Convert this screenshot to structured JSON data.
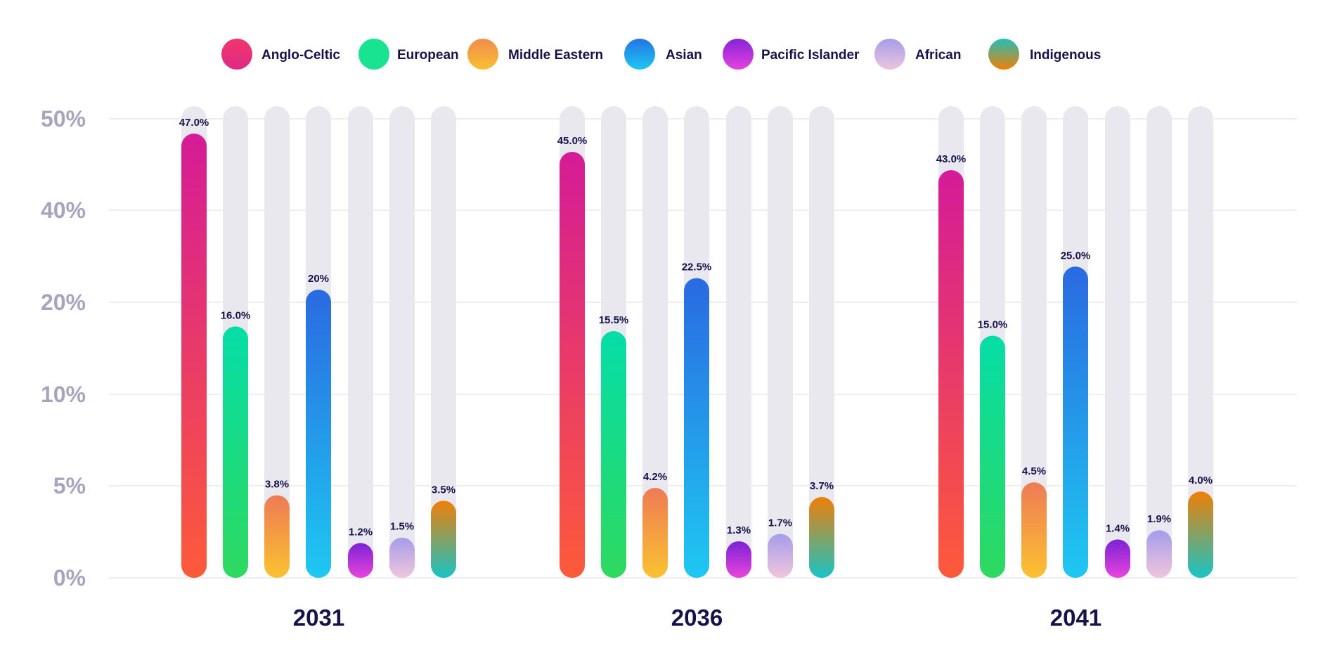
{
  "chart_data": {
    "type": "bar",
    "categories": [
      "2031",
      "2036",
      "2041"
    ],
    "y_ticks": [
      "0%",
      "5%",
      "10%",
      "20%",
      "40%",
      "50%"
    ],
    "y_tick_values": [
      0,
      5,
      10,
      20,
      40,
      50
    ],
    "ylim": [
      0,
      50
    ],
    "y_scale": "piecewise",
    "grid": true,
    "legend_position": "top",
    "series": [
      {
        "name": "Anglo-Celtic",
        "values": [
          47.0,
          45.0,
          43.0
        ],
        "labels": [
          "47.0%",
          "45.0%",
          "43.0%"
        ],
        "colors": [
          "#d51b97",
          "#fd5a3a"
        ],
        "legend_colors": [
          "#f3366a",
          "#dd2a86"
        ]
      },
      {
        "name": "European",
        "values": [
          16.0,
          15.5,
          15.0
        ],
        "labels": [
          "16.0%",
          "15.5%",
          "15.0%"
        ],
        "colors": [
          "#05dda7",
          "#2ed95f"
        ],
        "legend_colors": [
          "#19e391",
          "#19e391"
        ]
      },
      {
        "name": "Middle Eastern",
        "values": [
          3.8,
          4.2,
          4.5
        ],
        "labels": [
          "3.8%",
          "4.2%",
          "4.5%"
        ],
        "colors": [
          "#ee7b55",
          "#fac230"
        ],
        "legend_colors": [
          "#f28b4e",
          "#f9bf31"
        ]
      },
      {
        "name": "Asian",
        "values": [
          20,
          22.5,
          25.0
        ],
        "labels": [
          "20%",
          "22.5%",
          "25.0%"
        ],
        "colors": [
          "#2a6ae1",
          "#1ec8f1"
        ],
        "legend_colors": [
          "#2474e5",
          "#1ec8f1"
        ]
      },
      {
        "name": "Pacific Islander",
        "values": [
          1.2,
          1.3,
          1.4
        ],
        "labels": [
          "1.2%",
          "1.3%",
          "1.4%"
        ],
        "colors": [
          "#7b22d6",
          "#ea45dc"
        ],
        "legend_colors": [
          "#8524d8",
          "#e643dd"
        ]
      },
      {
        "name": "African",
        "values": [
          1.5,
          1.7,
          1.9
        ],
        "labels": [
          "1.5%",
          "1.7%",
          "1.9%"
        ],
        "colors": [
          "#a69cea",
          "#efc6dc"
        ],
        "legend_colors": [
          "#a79de9",
          "#ecc4dd"
        ]
      },
      {
        "name": "Indigenous",
        "values": [
          3.5,
          3.7,
          4.0
        ],
        "labels": [
          "3.5%",
          "3.7%",
          "4.0%"
        ],
        "colors": [
          "#ef7f06",
          "#18c4c5"
        ],
        "legend_colors": [
          "#21bfb9",
          "#ef8007"
        ]
      }
    ],
    "track_color": "#e9e8ee",
    "grid_color": "#dcdbe3"
  }
}
